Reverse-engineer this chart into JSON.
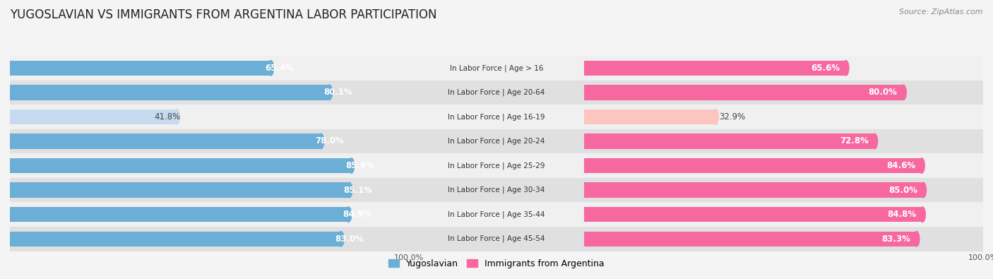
{
  "title": "YUGOSLAVIAN VS IMMIGRANTS FROM ARGENTINA LABOR PARTICIPATION",
  "source": "Source: ZipAtlas.com",
  "categories": [
    "In Labor Force | Age > 16",
    "In Labor Force | Age 20-64",
    "In Labor Force | Age 16-19",
    "In Labor Force | Age 20-24",
    "In Labor Force | Age 25-29",
    "In Labor Force | Age 30-34",
    "In Labor Force | Age 35-44",
    "In Labor Force | Age 45-54"
  ],
  "yugoslavian": [
    65.4,
    80.1,
    41.8,
    78.0,
    85.6,
    85.1,
    84.9,
    83.0
  ],
  "argentina": [
    65.6,
    80.0,
    32.9,
    72.8,
    84.6,
    85.0,
    84.8,
    83.3
  ],
  "yugo_color": "#6baed6",
  "yugo_color_light": "#c6dbef",
  "arg_color": "#f768a1",
  "arg_color_light": "#fcc5c0",
  "row_bg_light": "#f0f0f0",
  "row_bg_dark": "#e0e0e0",
  "bg_color": "#f4f4f4",
  "bar_height": 0.62,
  "label_fontsize": 8.5,
  "title_fontsize": 12,
  "source_fontsize": 8,
  "axis_fontsize": 8,
  "cat_fontsize": 7.5
}
